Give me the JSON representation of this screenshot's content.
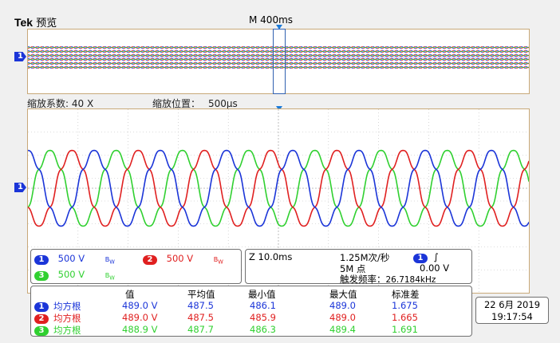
{
  "brand": {
    "name": "Tek",
    "mode": "预览"
  },
  "timebase": "M 400ms",
  "zoom": {
    "factor_label": "缩放系数: 40 X",
    "pos_label": "缩放位置：",
    "pos_value": "500µs"
  },
  "markers": {
    "ch1": "1"
  },
  "channels": [
    {
      "num": "1",
      "scale": "500 V",
      "bw": "B",
      "coupling": "W",
      "color": "#1b35d8"
    },
    {
      "num": "2",
      "scale": "500 V",
      "bw": "B",
      "coupling": "W",
      "color": "#e02020"
    },
    {
      "num": "3",
      "scale": "500 V",
      "bw": "B",
      "coupling": "W",
      "color": "#30d030"
    }
  ],
  "acq": {
    "zoom_time": "Z 10.0ms",
    "sample_rate": "1.25M次/秒",
    "points": "5M 点",
    "trigger_ch": "1",
    "trigger_slope": "∫",
    "trigger_level": "0.00 V",
    "trigger_freq_label": "触发频率：",
    "trigger_freq": "26.7184kHz"
  },
  "measurements": {
    "headers": [
      "值",
      "平均值",
      "最小值",
      "最大值",
      "标准差"
    ],
    "rows": [
      {
        "ch": "1",
        "type": "均方根",
        "value": "489.0 V",
        "mean": "487.5",
        "min": "486.1",
        "max": "489.0",
        "std": "1.675",
        "color": "#1b35d8"
      },
      {
        "ch": "2",
        "type": "均方根",
        "value": "489.0 V",
        "mean": "487.5",
        "min": "485.9",
        "max": "489.0",
        "std": "1.665",
        "color": "#e02020"
      },
      {
        "ch": "3",
        "type": "均方根",
        "value": "488.9 V",
        "mean": "487.7",
        "min": "486.3",
        "max": "489.4",
        "std": "1.691",
        "color": "#30d030"
      }
    ]
  },
  "datetime": {
    "date": "22 6月 2019",
    "time": "19:17:54"
  }
}
